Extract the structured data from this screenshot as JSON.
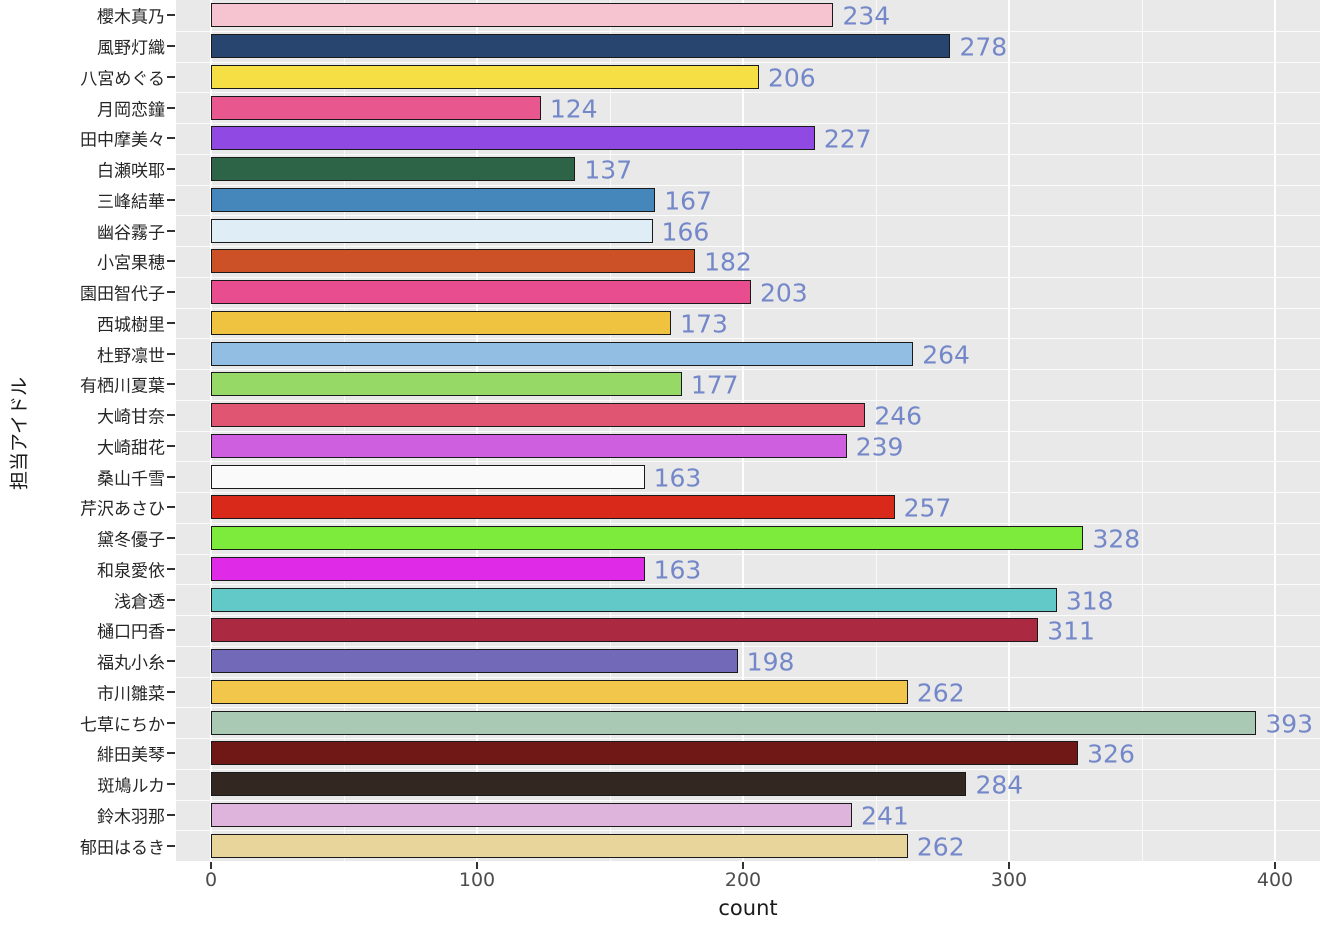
{
  "chart_data": {
    "type": "bar",
    "orientation": "horizontal",
    "title": "",
    "xlabel": "count",
    "ylabel": "担当アイドル",
    "xlim": [
      -13,
      417
    ],
    "x_ticks": [
      0,
      100,
      200,
      300,
      400
    ],
    "x_tick_labels": [
      "0",
      "100",
      "200",
      "300",
      "400"
    ],
    "x_minor_ticks": [
      50,
      150,
      250,
      350
    ],
    "grid": true,
    "legend": "none",
    "panel_bg": "#e9e9e9",
    "bar_border_color": "#1a1a1a",
    "value_label_color": "#7488c9",
    "categories": [
      "櫻木真乃",
      "風野灯織",
      "八宮めぐる",
      "月岡恋鐘",
      "田中摩美々",
      "白瀬咲耶",
      "三峰結華",
      "幽谷霧子",
      "小宮果穂",
      "園田智代子",
      "西城樹里",
      "杜野凛世",
      "有栖川夏葉",
      "大崎甘奈",
      "大崎甜花",
      "桑山千雪",
      "芹沢あさひ",
      "黛冬優子",
      "和泉愛依",
      "浅倉透",
      "樋口円香",
      "福丸小糸",
      "市川雛菜",
      "七草にちか",
      "緋田美琴",
      "斑鳩ルカ",
      "鈴木羽那",
      "郁田はるき"
    ],
    "values": [
      234,
      278,
      206,
      124,
      227,
      137,
      167,
      166,
      182,
      203,
      173,
      264,
      177,
      246,
      239,
      163,
      257,
      328,
      163,
      318,
      311,
      198,
      262,
      393,
      326,
      284,
      241,
      262
    ],
    "colors": [
      "#f6c3d1",
      "#28456f",
      "#f5df45",
      "#e8578d",
      "#9149e4",
      "#2d6347",
      "#4587bb",
      "#deedf6",
      "#cc5127",
      "#e84d90",
      "#efc23f",
      "#93bee4",
      "#96d967",
      "#e05672",
      "#ce5fde",
      "#fafafa",
      "#d8291b",
      "#7ceb3c",
      "#df2ae7",
      "#62c8c8",
      "#ab2a41",
      "#7369b9",
      "#f2c64a",
      "#a9c9b5",
      "#6f1815",
      "#322821",
      "#deb4dc",
      "#e7d59b"
    ]
  }
}
